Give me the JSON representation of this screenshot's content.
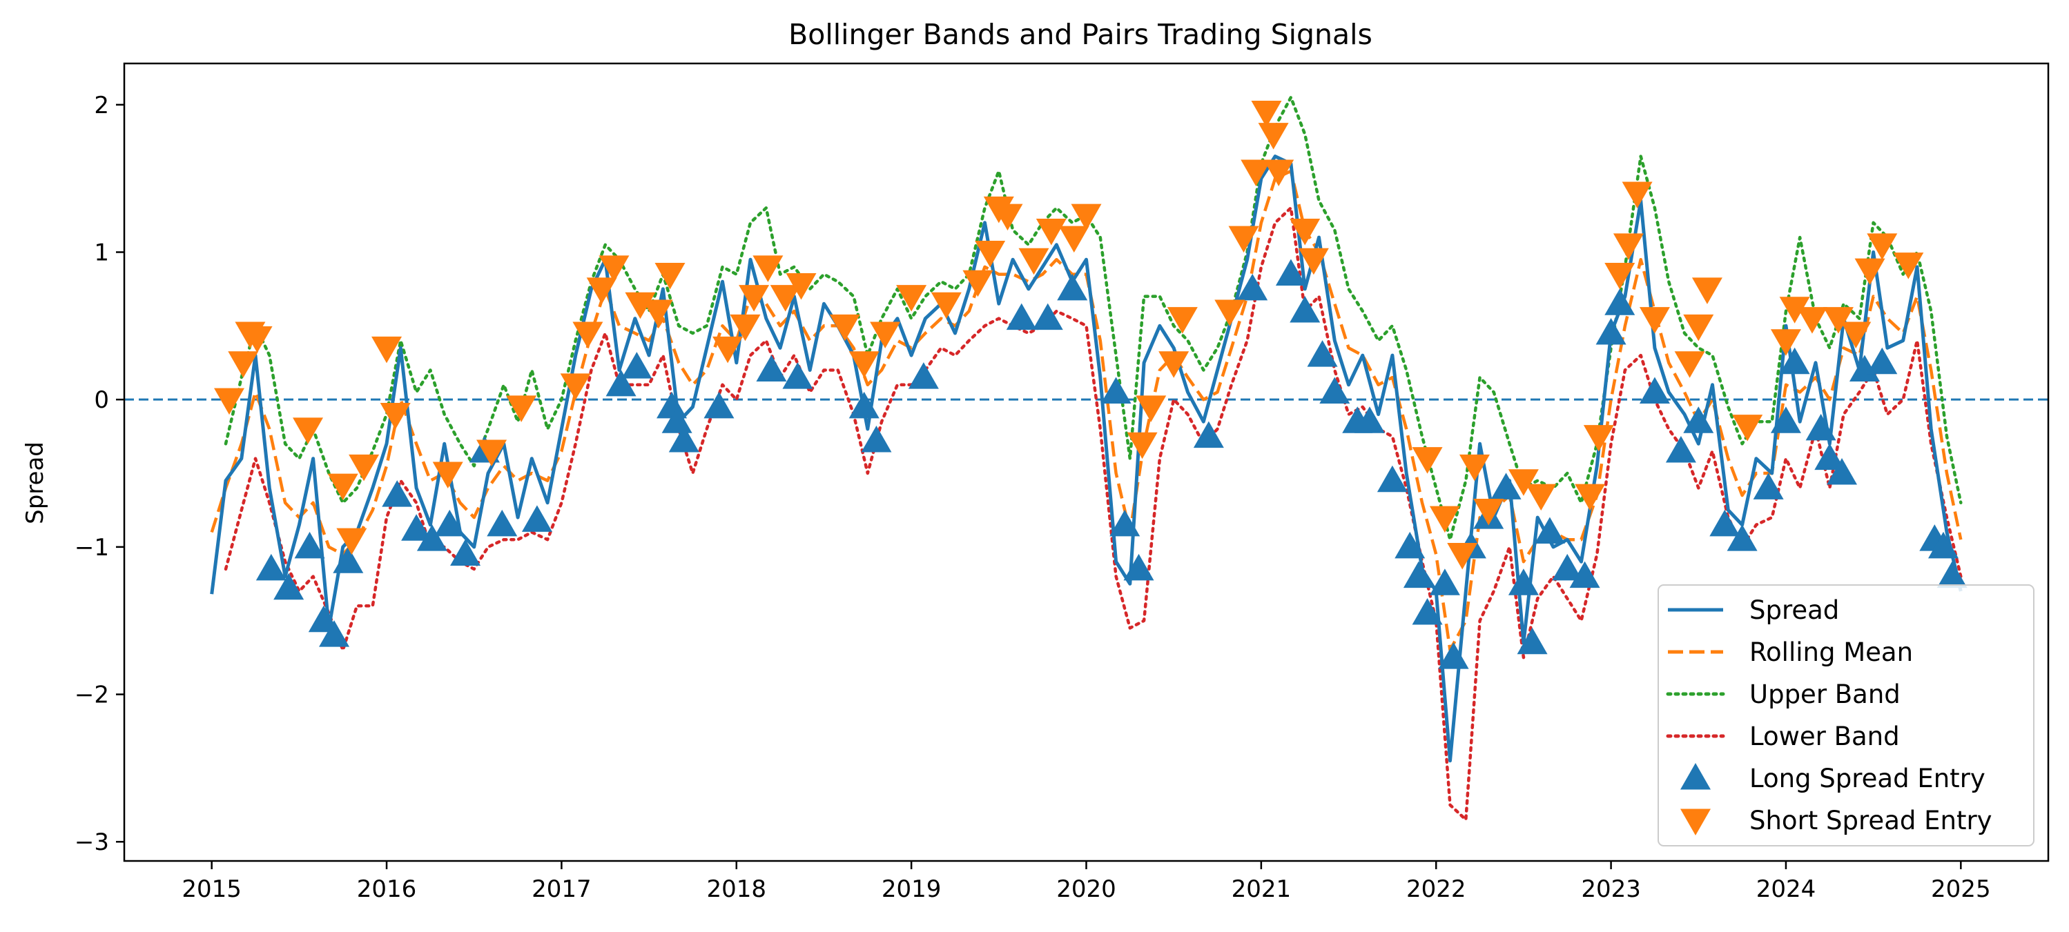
{
  "chart_data": {
    "type": "line",
    "title": "Bollinger Bands and Pairs Trading Signals",
    "xlabel": "",
    "ylabel": "Spread",
    "xlim": [
      2014.5,
      2025.5
    ],
    "ylim": [
      -3.13,
      2.28
    ],
    "x_ticks": [
      2015,
      2016,
      2017,
      2018,
      2019,
      2020,
      2021,
      2022,
      2023,
      2024,
      2025
    ],
    "x_tick_labels": [
      "2015",
      "2016",
      "2017",
      "2018",
      "2019",
      "2020",
      "2021",
      "2022",
      "2023",
      "2024",
      "2025"
    ],
    "y_ticks": [
      -3,
      -2,
      -1,
      0,
      1,
      2
    ],
    "y_tick_labels": [
      "−3",
      "−2",
      "−1",
      "0",
      "1",
      "2"
    ],
    "reference_line": {
      "y": 0,
      "style": "dashed",
      "color": "#1f77b4"
    },
    "grid": false,
    "legend_position": "bottom-right",
    "x": [
      2015.0,
      2015.08,
      2015.17,
      2015.25,
      2015.33,
      2015.42,
      2015.5,
      2015.58,
      2015.67,
      2015.75,
      2015.83,
      2015.92,
      2016.0,
      2016.08,
      2016.17,
      2016.25,
      2016.33,
      2016.42,
      2016.5,
      2016.58,
      2016.67,
      2016.75,
      2016.83,
      2016.92,
      2017.0,
      2017.08,
      2017.17,
      2017.25,
      2017.33,
      2017.42,
      2017.5,
      2017.58,
      2017.67,
      2017.75,
      2017.83,
      2017.92,
      2018.0,
      2018.08,
      2018.17,
      2018.25,
      2018.33,
      2018.42,
      2018.5,
      2018.58,
      2018.67,
      2018.75,
      2018.83,
      2018.92,
      2019.0,
      2019.08,
      2019.17,
      2019.25,
      2019.33,
      2019.42,
      2019.5,
      2019.58,
      2019.67,
      2019.75,
      2019.83,
      2019.92,
      2020.0,
      2020.08,
      2020.17,
      2020.25,
      2020.33,
      2020.42,
      2020.5,
      2020.58,
      2020.67,
      2020.75,
      2020.83,
      2020.92,
      2021.0,
      2021.08,
      2021.17,
      2021.25,
      2021.33,
      2021.42,
      2021.5,
      2021.58,
      2021.67,
      2021.75,
      2021.83,
      2021.92,
      2022.0,
      2022.08,
      2022.17,
      2022.25,
      2022.33,
      2022.42,
      2022.5,
      2022.58,
      2022.67,
      2022.75,
      2022.83,
      2022.92,
      2023.0,
      2023.08,
      2023.17,
      2023.25,
      2023.33,
      2023.42,
      2023.5,
      2023.58,
      2023.67,
      2023.75,
      2023.83,
      2023.92,
      2024.0,
      2024.08,
      2024.17,
      2024.25,
      2024.33,
      2024.42,
      2024.5,
      2024.58,
      2024.67,
      2024.75,
      2024.83,
      2024.92,
      2025.0
    ],
    "series": [
      {
        "name": "Spread",
        "style": "solid",
        "color": "#1f77b4",
        "values": [
          -1.32,
          -0.55,
          -0.4,
          0.3,
          -0.6,
          -1.2,
          -0.85,
          -0.4,
          -1.55,
          -1.0,
          -0.9,
          -0.6,
          -0.3,
          0.35,
          -0.6,
          -0.85,
          -0.3,
          -0.9,
          -1.0,
          -0.5,
          -0.3,
          -0.8,
          -0.4,
          -0.7,
          -0.2,
          0.3,
          0.75,
          0.95,
          0.2,
          0.55,
          0.3,
          0.75,
          -0.15,
          -0.05,
          0.35,
          0.8,
          0.25,
          0.95,
          0.55,
          0.35,
          0.7,
          0.2,
          0.65,
          0.5,
          0.3,
          -0.2,
          0.4,
          0.55,
          0.3,
          0.55,
          0.65,
          0.45,
          0.75,
          1.2,
          0.65,
          0.95,
          0.75,
          0.9,
          1.05,
          0.8,
          0.95,
          0.15,
          -1.1,
          -1.25,
          0.25,
          0.5,
          0.35,
          0.05,
          -0.15,
          0.2,
          0.55,
          0.95,
          1.5,
          1.65,
          1.6,
          0.75,
          1.1,
          0.4,
          0.1,
          0.3,
          -0.1,
          0.3,
          -0.5,
          -1.15,
          -1.3,
          -2.45,
          -1.3,
          -0.3,
          -0.8,
          -0.55,
          -1.65,
          -0.8,
          -1.0,
          -0.95,
          -1.1,
          -0.45,
          0.45,
          0.7,
          1.35,
          0.35,
          0.05,
          -0.1,
          -0.3,
          0.1,
          -0.75,
          -0.85,
          -0.4,
          -0.5,
          0.5,
          -0.15,
          0.25,
          -0.3,
          0.55,
          0.2,
          1.0,
          0.35,
          0.4,
          0.9,
          -0.2,
          -0.9,
          -1.3
        ]
      },
      {
        "name": "Rolling Mean",
        "style": "dashed",
        "color": "#ff7f0e",
        "values": [
          -0.9,
          -0.6,
          -0.3,
          0.05,
          -0.2,
          -0.7,
          -0.8,
          -0.7,
          -1.0,
          -1.05,
          -0.95,
          -0.75,
          -0.45,
          0.0,
          -0.3,
          -0.55,
          -0.5,
          -0.7,
          -0.8,
          -0.6,
          -0.45,
          -0.55,
          -0.5,
          -0.55,
          -0.35,
          0.05,
          0.45,
          0.75,
          0.5,
          0.45,
          0.4,
          0.55,
          0.25,
          0.1,
          0.2,
          0.5,
          0.4,
          0.7,
          0.65,
          0.5,
          0.6,
          0.4,
          0.5,
          0.5,
          0.35,
          0.1,
          0.2,
          0.4,
          0.35,
          0.45,
          0.55,
          0.5,
          0.6,
          0.9,
          0.85,
          0.85,
          0.8,
          0.85,
          0.95,
          0.85,
          0.85,
          0.4,
          -0.5,
          -0.9,
          -0.3,
          0.2,
          0.3,
          0.15,
          0.0,
          0.05,
          0.35,
          0.7,
          1.2,
          1.5,
          1.55,
          1.15,
          1.0,
          0.65,
          0.35,
          0.3,
          0.1,
          0.15,
          -0.2,
          -0.7,
          -1.05,
          -1.7,
          -1.5,
          -0.8,
          -0.75,
          -0.65,
          -1.1,
          -0.95,
          -0.9,
          -0.95,
          -0.95,
          -0.65,
          0.0,
          0.5,
          0.95,
          0.6,
          0.25,
          0.05,
          -0.15,
          0.0,
          -0.4,
          -0.65,
          -0.5,
          -0.5,
          0.1,
          0.05,
          0.15,
          0.0,
          0.35,
          0.3,
          0.7,
          0.55,
          0.45,
          0.7,
          0.2,
          -0.5,
          -0.95
        ]
      },
      {
        "name": "Upper Band",
        "style": "dotted",
        "color": "#2ca02c",
        "values": [
          null,
          -0.3,
          0.15,
          0.5,
          0.3,
          -0.3,
          -0.4,
          -0.2,
          -0.5,
          -0.7,
          -0.6,
          -0.35,
          -0.1,
          0.4,
          0.05,
          0.2,
          -0.1,
          -0.3,
          -0.45,
          -0.2,
          0.1,
          -0.15,
          0.2,
          -0.2,
          0.0,
          0.4,
          0.8,
          1.05,
          0.95,
          0.75,
          0.6,
          0.85,
          0.5,
          0.45,
          0.5,
          0.9,
          0.85,
          1.2,
          1.3,
          0.85,
          0.9,
          0.75,
          0.85,
          0.8,
          0.7,
          0.3,
          0.55,
          0.75,
          0.55,
          0.7,
          0.8,
          0.75,
          0.85,
          1.3,
          1.55,
          1.15,
          1.05,
          1.2,
          1.3,
          1.2,
          1.25,
          1.1,
          0.3,
          -0.4,
          0.7,
          0.7,
          0.5,
          0.4,
          0.2,
          0.35,
          0.6,
          1.0,
          1.6,
          1.85,
          2.05,
          1.8,
          1.35,
          1.15,
          0.75,
          0.6,
          0.4,
          0.5,
          0.2,
          -0.25,
          -0.6,
          -0.95,
          -0.55,
          0.15,
          0.05,
          -0.3,
          -0.6,
          -0.55,
          -0.6,
          -0.5,
          -0.7,
          -0.3,
          0.35,
          0.9,
          1.65,
          1.3,
          0.8,
          0.45,
          0.35,
          0.3,
          -0.05,
          -0.3,
          -0.15,
          -0.15,
          0.6,
          1.1,
          0.55,
          0.35,
          0.65,
          0.55,
          1.2,
          1.1,
          0.85,
          1.0,
          0.6,
          -0.25,
          -0.7
        ]
      },
      {
        "name": "Lower Band",
        "style": "dotted",
        "color": "#d62728",
        "values": [
          null,
          -1.15,
          -0.75,
          -0.4,
          -0.7,
          -1.1,
          -1.3,
          -1.2,
          -1.45,
          -1.7,
          -1.4,
          -1.4,
          -0.8,
          -0.55,
          -0.7,
          -1.0,
          -1.0,
          -1.1,
          -1.15,
          -1.0,
          -0.95,
          -0.95,
          -0.9,
          -0.95,
          -0.7,
          -0.3,
          0.2,
          0.45,
          0.1,
          0.1,
          0.1,
          0.3,
          -0.2,
          -0.5,
          -0.2,
          0.1,
          0.0,
          0.3,
          0.4,
          0.15,
          0.3,
          0.05,
          0.2,
          0.2,
          -0.1,
          -0.5,
          -0.15,
          0.1,
          0.1,
          0.2,
          0.35,
          0.3,
          0.4,
          0.5,
          0.55,
          0.5,
          0.45,
          0.5,
          0.6,
          0.55,
          0.5,
          -0.2,
          -1.2,
          -1.55,
          -1.5,
          -0.4,
          0.0,
          -0.1,
          -0.3,
          -0.2,
          0.1,
          0.4,
          0.9,
          1.2,
          1.3,
          0.6,
          0.7,
          0.2,
          -0.1,
          -0.05,
          -0.2,
          -0.25,
          -0.6,
          -1.1,
          -1.5,
          -2.75,
          -2.85,
          -1.5,
          -1.3,
          -1.0,
          -1.75,
          -1.35,
          -1.2,
          -1.35,
          -1.5,
          -1.05,
          -0.3,
          0.2,
          0.3,
          0.0,
          -0.2,
          -0.35,
          -0.6,
          -0.35,
          -0.8,
          -1.0,
          -0.85,
          -0.8,
          -0.4,
          -0.6,
          -0.2,
          -0.6,
          -0.1,
          0.05,
          0.2,
          -0.1,
          0.0,
          0.4,
          -0.3,
          -0.8,
          -1.2
        ]
      }
    ],
    "long_entries": {
      "name": "Long Spread Entry",
      "marker": "triangle-up",
      "color": "#1f77b4",
      "x": [
        2015.34,
        2015.44,
        2015.56,
        2015.64,
        2015.7,
        2015.78,
        2016.06,
        2016.17,
        2016.26,
        2016.36,
        2016.45,
        2016.56,
        2016.66,
        2016.86,
        2017.34,
        2017.43,
        2017.63,
        2017.66,
        2017.7,
        2017.9,
        2018.2,
        2018.35,
        2018.73,
        2018.8,
        2019.07,
        2019.63,
        2019.78,
        2019.92,
        2020.17,
        2020.22,
        2020.3,
        2020.7,
        2020.95,
        2021.17,
        2021.25,
        2021.35,
        2021.42,
        2021.55,
        2021.62,
        2021.75,
        2021.85,
        2021.9,
        2021.95,
        2022.05,
        2022.1,
        2022.2,
        2022.3,
        2022.4,
        2022.5,
        2022.55,
        2022.65,
        2022.75,
        2022.85,
        2023.0,
        2023.05,
        2023.25,
        2023.4,
        2023.5,
        2023.65,
        2023.75,
        2023.9,
        2024.0,
        2024.05,
        2024.2,
        2024.25,
        2024.32,
        2024.45,
        2024.55,
        2024.85,
        2024.9,
        2024.95
      ],
      "y": [
        -1.15,
        -1.28,
        -1.0,
        -1.5,
        -1.6,
        -1.1,
        -0.65,
        -0.88,
        -0.95,
        -0.85,
        -1.05,
        -0.35,
        -0.85,
        -0.82,
        0.1,
        0.22,
        -0.05,
        -0.15,
        -0.28,
        -0.05,
        0.2,
        0.15,
        -0.05,
        -0.28,
        0.15,
        0.55,
        0.55,
        0.75,
        0.05,
        -0.85,
        -1.15,
        -0.25,
        0.75,
        0.85,
        0.6,
        0.3,
        0.05,
        -0.15,
        -0.15,
        -0.55,
        -1.0,
        -1.2,
        -1.45,
        -1.25,
        -1.75,
        -1.0,
        -0.8,
        -0.6,
        -1.25,
        -1.65,
        -0.9,
        -1.15,
        -1.2,
        0.45,
        0.65,
        0.05,
        -0.35,
        -0.15,
        -0.85,
        -0.95,
        -0.6,
        -0.15,
        0.25,
        -0.2,
        -0.4,
        -0.5,
        0.2,
        0.25,
        -0.95,
        -1.0,
        -1.2
      ]
    },
    "short_entries": {
      "name": "Short Spread Entry",
      "marker": "triangle-down",
      "color": "#ff7f0e",
      "x": [
        2015.1,
        2015.18,
        2015.22,
        2015.26,
        2015.55,
        2015.75,
        2015.8,
        2015.87,
        2016.0,
        2016.05,
        2016.35,
        2016.6,
        2016.77,
        2017.08,
        2017.15,
        2017.23,
        2017.3,
        2017.45,
        2017.55,
        2017.62,
        2017.95,
        2018.05,
        2018.1,
        2018.18,
        2018.28,
        2018.37,
        2018.62,
        2018.73,
        2018.85,
        2019.0,
        2019.2,
        2019.38,
        2019.45,
        2019.5,
        2019.55,
        2019.7,
        2019.8,
        2019.93,
        2020.0,
        2020.32,
        2020.37,
        2020.5,
        2020.55,
        2020.82,
        2020.9,
        2020.97,
        2021.03,
        2021.07,
        2021.1,
        2021.25,
        2021.3,
        2021.95,
        2022.05,
        2022.15,
        2022.22,
        2022.3,
        2022.5,
        2022.6,
        2022.88,
        2022.93,
        2023.05,
        2023.1,
        2023.15,
        2023.25,
        2023.45,
        2023.5,
        2023.55,
        2023.78,
        2024.0,
        2024.05,
        2024.15,
        2024.3,
        2024.4,
        2024.48,
        2024.55,
        2024.7
      ],
      "y": [
        0.0,
        0.25,
        0.45,
        0.42,
        -0.2,
        -0.58,
        -0.95,
        -0.45,
        0.35,
        -0.1,
        -0.5,
        -0.35,
        -0.05,
        0.1,
        0.45,
        0.75,
        0.9,
        0.65,
        0.6,
        0.85,
        0.35,
        0.5,
        0.7,
        0.9,
        0.7,
        0.78,
        0.5,
        0.25,
        0.45,
        0.7,
        0.65,
        0.8,
        1.0,
        1.3,
        1.25,
        0.95,
        1.15,
        1.1,
        1.25,
        -0.3,
        -0.05,
        0.25,
        0.55,
        0.6,
        1.1,
        1.55,
        1.95,
        1.8,
        1.55,
        1.15,
        0.95,
        -0.4,
        -0.8,
        -1.05,
        -0.45,
        -0.75,
        -0.55,
        -0.65,
        -0.65,
        -0.25,
        0.85,
        1.05,
        1.4,
        0.55,
        0.25,
        0.5,
        0.75,
        -0.18,
        0.4,
        0.62,
        0.55,
        0.55,
        0.45,
        0.88,
        1.05,
        0.92
      ]
    }
  }
}
